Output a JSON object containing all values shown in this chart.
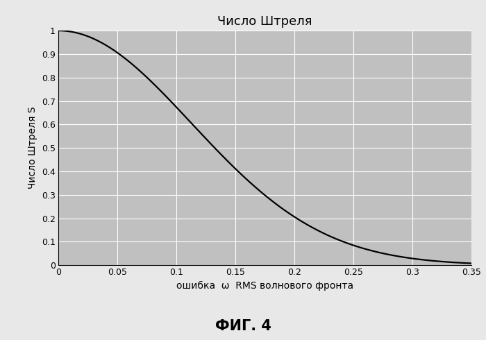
{
  "title": "Число Штреля",
  "ylabel": "Число Штреля S",
  "xlabel": "ошибка  ω  RMS волнового фронта",
  "xlim": [
    0,
    0.35
  ],
  "ylim": [
    0,
    1.0
  ],
  "xticks": [
    0,
    0.05,
    0.1,
    0.15,
    0.2,
    0.25,
    0.3,
    0.35
  ],
  "yticks": [
    0,
    0.1,
    0.2,
    0.3,
    0.4,
    0.5,
    0.6,
    0.7,
    0.8,
    0.9,
    1.0
  ],
  "plot_bg_color": "#c0c0c0",
  "fig_bg_color": "#e8e8e8",
  "line_color": "#000000",
  "line_width": 1.6,
  "grid_color": "#ffffff",
  "fig_caption": "ФИГ. 4",
  "title_fontsize": 13,
  "label_fontsize": 10,
  "tick_fontsize": 9,
  "caption_fontsize": 15
}
